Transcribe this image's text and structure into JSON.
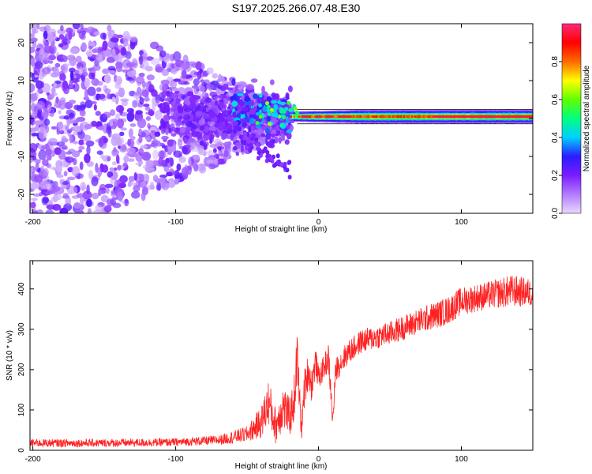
{
  "title": "S197.2025.266.07.48.E30",
  "colors": {
    "line": "#ff2222",
    "gradient": [
      "#e8d8ff",
      "#b27cff",
      "#7a1cff",
      "#2a1cff",
      "#00d0ff",
      "#00ff80",
      "#60ff00",
      "#ffff00",
      "#ff6a00",
      "#ff0000",
      "#ff2a7a"
    ]
  },
  "chart_data": [
    {
      "type": "heatmap",
      "title": "",
      "xlabel": "Height of straight line (km)",
      "ylabel": "Frequency (Hz)",
      "xlim": [
        -202,
        150
      ],
      "ylim": [
        -25,
        25
      ],
      "xticks": [
        -200,
        -100,
        0,
        100
      ],
      "xtick_labels": [
        "-200",
        "-100",
        "0",
        "100"
      ],
      "yticks": [
        -20,
        -10,
        0,
        10,
        20
      ],
      "ytick_labels": [
        "-20",
        "-10",
        "0",
        "10",
        "20"
      ],
      "colorbar": {
        "label": "Normalized spectral amplitude",
        "range": [
          0,
          1
        ],
        "ticks": [
          0.0,
          0.2,
          0.4,
          0.6,
          0.8
        ],
        "tick_labels": [
          "0.0",
          "0.2",
          "0.4",
          "0.6",
          "0.8"
        ]
      },
      "features": {
        "noise_region_km": [
          -202,
          -20
        ],
        "signal_band_km": [
          -20,
          150
        ],
        "signal_center_hz": 0.5,
        "branch_km": [
          -60,
          -20
        ],
        "branch_hz": [
          -3,
          -14
        ]
      }
    },
    {
      "type": "line",
      "title": "",
      "xlabel": "Height of straight line (km)",
      "ylabel": "SNR (10 * v/v)",
      "xlim": [
        -202,
        150
      ],
      "ylim": [
        0,
        470
      ],
      "xticks": [
        -200,
        -100,
        0,
        100
      ],
      "xtick_labels": [
        "-200",
        "-100",
        "0",
        "100"
      ],
      "yticks": [
        0,
        100,
        200,
        300,
        400
      ],
      "ytick_labels": [
        "0",
        "100",
        "200",
        "300",
        "400"
      ],
      "series": [
        {
          "name": "SNR",
          "x": [
            -202,
            -150,
            -100,
            -70,
            -50,
            -40,
            -35,
            -30,
            -25,
            -20,
            -17,
            -15,
            -12,
            -10,
            -7,
            -5,
            -2,
            0,
            3,
            7,
            10,
            12,
            15,
            20,
            30,
            50,
            70,
            90,
            100,
            120,
            135,
            150
          ],
          "mean": [
            18,
            18,
            20,
            25,
            40,
            70,
            120,
            60,
            110,
            80,
            130,
            230,
            50,
            150,
            200,
            160,
            220,
            180,
            200,
            230,
            70,
            200,
            215,
            240,
            270,
            290,
            320,
            345,
            370,
            385,
            395,
            390
          ],
          "spread": [
            10,
            10,
            10,
            12,
            20,
            40,
            60,
            45,
            60,
            45,
            60,
            70,
            25,
            50,
            45,
            40,
            35,
            30,
            30,
            35,
            25,
            30,
            30,
            30,
            30,
            30,
            32,
            35,
            35,
            35,
            40,
            35
          ]
        }
      ]
    }
  ]
}
